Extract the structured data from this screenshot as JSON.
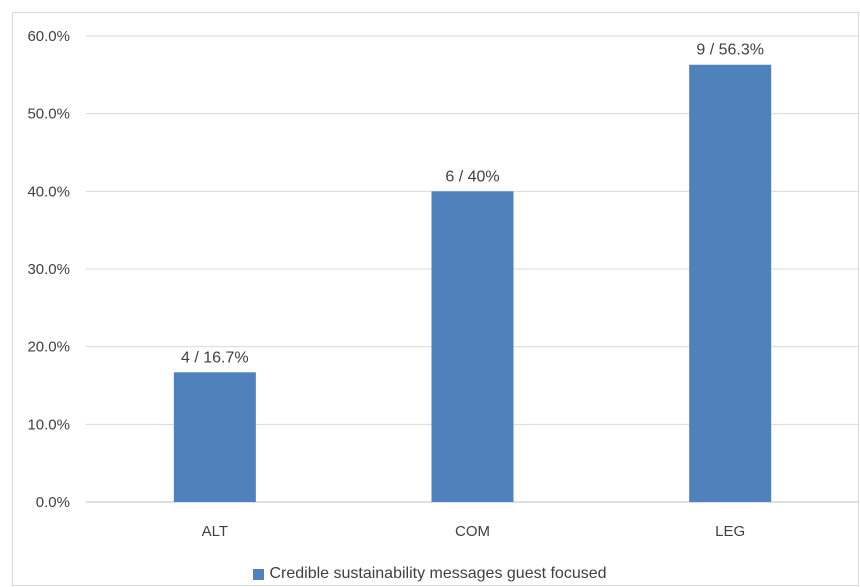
{
  "chart_data": {
    "type": "bar",
    "categories": [
      "ALT",
      "COM",
      "LEG"
    ],
    "series": [
      {
        "name": "Credible sustainability messages guest focused",
        "values": [
          16.7,
          40,
          56.3
        ],
        "data_labels": [
          "4 / 16.7%",
          "6 / 40%",
          "9 / 56.3%"
        ],
        "color": "#4f81bd"
      }
    ],
    "y_ticks": [
      "0.0%",
      "10.0%",
      "20.0%",
      "30.0%",
      "40.0%",
      "50.0%",
      "60.0%"
    ],
    "ylim": [
      0,
      60
    ],
    "grid": true,
    "legend_position": "bottom",
    "title": "",
    "xlabel": "",
    "ylabel": ""
  }
}
